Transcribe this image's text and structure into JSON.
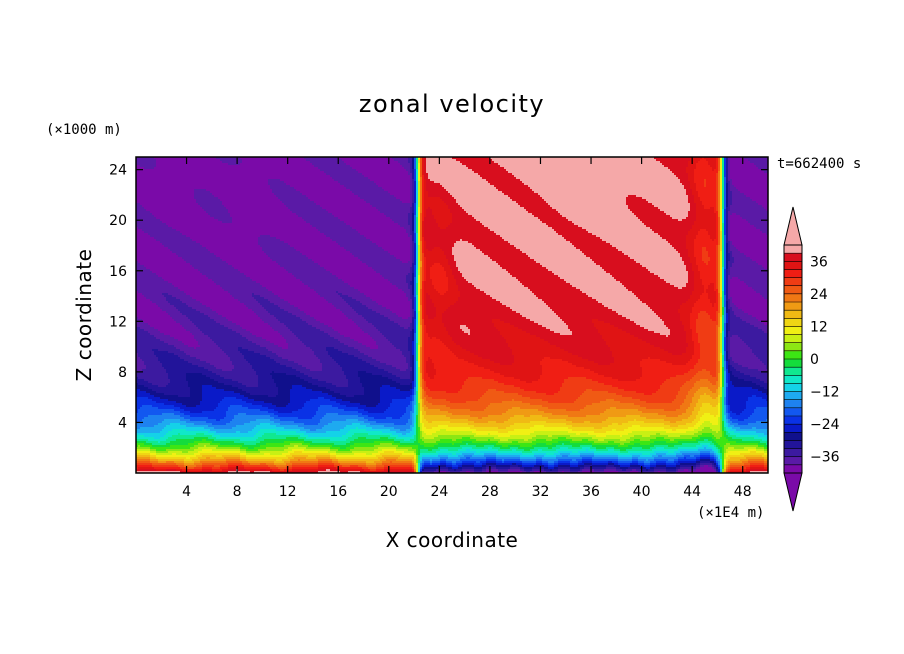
{
  "chart_data": {
    "type": "heatmap",
    "title": "zonal velocity",
    "xlabel": "X coordinate",
    "ylabel": "Z coordinate",
    "x_unit": "(×1E4 m)",
    "y_unit": "(×1000 m)",
    "time_label": "t=662400 s",
    "xlim": [
      0,
      50
    ],
    "ylim": [
      0,
      25
    ],
    "x_ticks": [
      4,
      8,
      12,
      16,
      20,
      24,
      28,
      32,
      36,
      40,
      44,
      48
    ],
    "y_ticks": [
      4,
      8,
      12,
      16,
      20,
      24
    ],
    "colorbar": {
      "levels": [
        -42,
        -39,
        -36,
        -33,
        -30,
        -27,
        -24,
        -21,
        -18,
        -15,
        -12,
        -9,
        -6,
        -3,
        0,
        3,
        6,
        9,
        12,
        15,
        18,
        21,
        24,
        27,
        30,
        33,
        36,
        39,
        42
      ],
      "tick_values": [
        36,
        24,
        12,
        0,
        -12,
        -24,
        -36
      ],
      "tick_labels": [
        "36",
        "24",
        "12",
        "0",
        "−12",
        "−24",
        "−36"
      ],
      "colors": [
        "#7a0aa8",
        "#5a1aa6",
        "#3c1aa0",
        "#22149a",
        "#10108c",
        "#0a1ac8",
        "#0a32e6",
        "#1258f0",
        "#1e82f0",
        "#1eaaf0",
        "#14d2e8",
        "#10e8c8",
        "#10e890",
        "#14dc3c",
        "#3ce614",
        "#8ce614",
        "#c8f014",
        "#f0f014",
        "#f0d614",
        "#f0ba14",
        "#f09a14",
        "#f07814",
        "#f05a14",
        "#f03c14",
        "#f01e14",
        "#e01414",
        "#d80e1e",
        "#f5a8a8"
      ],
      "over_color": "#f5a8a8",
      "under_color": "#7a0aa8"
    }
  }
}
